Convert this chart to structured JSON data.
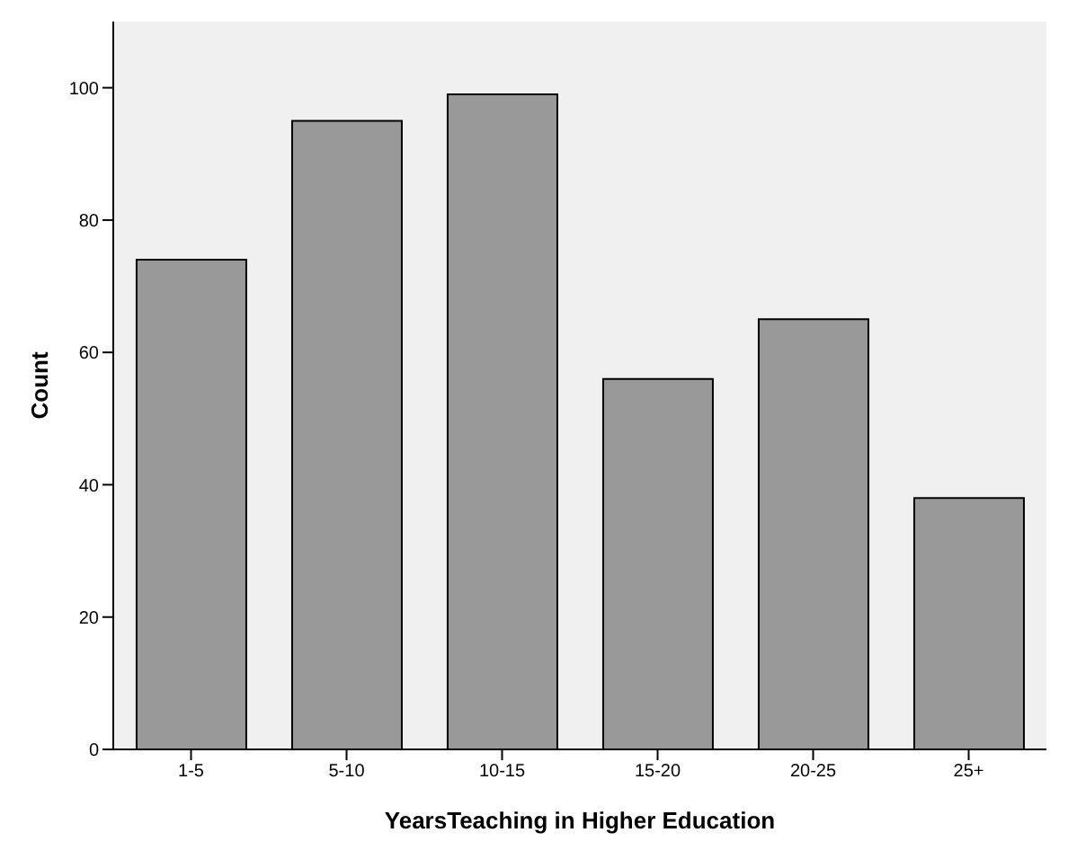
{
  "chart_data": {
    "type": "bar",
    "xlabel": "YearsTeaching in Higher Education",
    "ylabel": "Count",
    "categories": [
      "1-5",
      "5-10",
      "10-15",
      "15-20",
      "20-25",
      "25+"
    ],
    "values": [
      74,
      95,
      99,
      56,
      65,
      38
    ],
    "color": "#999999",
    "ylim": [
      0,
      110
    ],
    "yticks": [
      0,
      20,
      40,
      60,
      80,
      100
    ],
    "grid": false
  }
}
